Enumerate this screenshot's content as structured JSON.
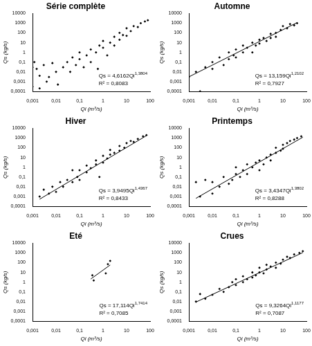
{
  "chart_data": [
    {
      "type": "scatter",
      "title": "Série complète",
      "x_label": "Qi (m³/s)",
      "y_label": "Qs (kg/s)",
      "log": true,
      "grid": false,
      "marker": "diamond",
      "color": "#000000",
      "line_style": "solid",
      "xlim": [
        0.001,
        100
      ],
      "ylim": [
        0.0001,
        10000
      ],
      "xticks": [
        {
          "value": 0.001,
          "label": "0,001"
        },
        {
          "value": 0.01,
          "label": "0,01"
        },
        {
          "value": 0.1,
          "label": "0,1"
        },
        1,
        10,
        100
      ],
      "yticks": [
        {
          "value": 0.0001,
          "label": "0,0001"
        },
        {
          "value": 0.001,
          "label": "0,001"
        },
        {
          "value": 0.01,
          "label": "0,01"
        },
        {
          "value": 0.1,
          "label": "0,1"
        },
        1,
        10,
        100,
        1000,
        10000
      ],
      "x": [
        0.001,
        0.001,
        0.0012,
        0.0015,
        0.002,
        0.003,
        0.004,
        0.005,
        0.007,
        0.01,
        0.012,
        0.02,
        0.03,
        0.04,
        0.05,
        0.07,
        0.1,
        0.1,
        0.15,
        0.2,
        0.3,
        0.3,
        0.5,
        0.7,
        1,
        1,
        1.5,
        2,
        3,
        3,
        5,
        5,
        7,
        10,
        10,
        15,
        20,
        30,
        40,
        60,
        80,
        0.6,
        0.002
      ],
      "values": [
        0.0003,
        0.03,
        0.1,
        0.02,
        0.0002,
        0.05,
        0.001,
        0.003,
        0.08,
        0.01,
        0.0005,
        0.03,
        0.1,
        0.01,
        0.3,
        0.05,
        0.2,
        1,
        0.03,
        0.5,
        2,
        0.1,
        1,
        5,
        3,
        15,
        0.5,
        10,
        40,
        5,
        20,
        100,
        60,
        50,
        300,
        150,
        500,
        400,
        1000,
        1500,
        2000,
        0.02,
        0.004
      ],
      "equation": {
        "text": "Qs = 4,6162Qi",
        "superscript": "1,3804"
      },
      "r2": "R² = 0,8083"
    },
    {
      "type": "scatter",
      "title": "Automne",
      "x_label": "Qi (m³/s)",
      "y_label": "Qs (kg/s)",
      "log": true,
      "grid": false,
      "marker": "diamond",
      "color": "#000000",
      "line_style": "solid",
      "xlim": [
        0.001,
        100
      ],
      "ylim": [
        0.0001,
        10000
      ],
      "xticks": [
        {
          "value": 0.001,
          "label": "0,001"
        },
        {
          "value": 0.01,
          "label": "0,01"
        },
        {
          "value": 0.1,
          "label": "0,1"
        },
        1,
        10,
        100
      ],
      "yticks": [
        {
          "value": 0.0001,
          "label": "0,0001"
        },
        {
          "value": 0.001,
          "label": "0,001"
        },
        {
          "value": 0.01,
          "label": "0,01"
        },
        {
          "value": 0.1,
          "label": "0,1"
        },
        1,
        10,
        100,
        1000,
        10000
      ],
      "x": [
        0.001,
        0.002,
        0.003,
        0.005,
        0.01,
        0.01,
        0.02,
        0.03,
        0.05,
        0.05,
        0.08,
        0.1,
        0.1,
        0.2,
        0.2,
        0.3,
        0.5,
        0.5,
        0.7,
        1,
        1,
        1.5,
        2,
        3,
        3,
        5,
        5,
        8,
        10,
        15,
        20,
        30,
        40
      ],
      "values": [
        0.003,
        0.01,
        0.0001,
        0.03,
        0.1,
        0.02,
        0.3,
        0.05,
        0.2,
        1,
        0.5,
        0.3,
        2,
        1,
        5,
        3,
        10,
        1,
        5,
        20,
        8,
        30,
        15,
        80,
        30,
        100,
        40,
        200,
        500,
        300,
        800,
        600,
        1000
      ],
      "trend_line": {
        "x": [
          0.001,
          40
        ],
        "values": [
          0.00308,
          1143
        ]
      },
      "equation": {
        "text": "Qs = 13,159Qi",
        "superscript": "1,2102"
      },
      "r2": "R² = 0,7927"
    },
    {
      "type": "scatter",
      "title": "Hiver",
      "x_label": "Qi (m³/s)",
      "y_label": "Qs (kg/s)",
      "log": true,
      "grid": false,
      "marker": "diamond",
      "color": "#000000",
      "line_style": "solid",
      "xlim": [
        0.001,
        100
      ],
      "ylim": [
        0.0001,
        10000
      ],
      "xticks": [
        {
          "value": 0.001,
          "label": "0,001"
        },
        {
          "value": 0.01,
          "label": "0,01"
        },
        {
          "value": 0.1,
          "label": "0,1"
        },
        1,
        10,
        100
      ],
      "yticks": [
        {
          "value": 0.0001,
          "label": "0,0001"
        },
        {
          "value": 0.001,
          "label": "0,001"
        },
        {
          "value": 0.01,
          "label": "0,01"
        },
        {
          "value": 0.1,
          "label": "0,1"
        },
        1,
        10,
        100,
        1000,
        10000
      ],
      "x": [
        0.002,
        0.003,
        0.005,
        0.007,
        0.01,
        0.015,
        0.02,
        0.03,
        0.05,
        0.05,
        0.08,
        0.1,
        0.1,
        0.2,
        0.2,
        0.3,
        0.5,
        0.5,
        0.7,
        1,
        1,
        1.5,
        2,
        2,
        3,
        5,
        5,
        8,
        10,
        15,
        20,
        30,
        50,
        70
      ],
      "values": [
        0.001,
        0.005,
        0.002,
        0.01,
        0.003,
        0.03,
        0.01,
        0.05,
        0.03,
        0.5,
        0.1,
        0.05,
        0.5,
        0.3,
        1.5,
        0.8,
        2,
        5,
        0.1,
        3,
        15,
        8,
        20,
        60,
        30,
        50,
        150,
        100,
        300,
        500,
        400,
        800,
        1500,
        2000
      ],
      "trend_line": {
        "x": [
          0.002,
          70
        ],
        "values": [
          0.000524,
          1768
        ]
      },
      "equation": {
        "text": "Qs = 3,9495Qi",
        "superscript": "1,4367"
      },
      "r2": "R² = 0,8433"
    },
    {
      "type": "scatter",
      "title": "Printemps",
      "x_label": "Qi (m³/s)",
      "y_label": "Qs (kg/s)",
      "log": true,
      "grid": false,
      "marker": "diamond",
      "color": "#000000",
      "line_style": "solid",
      "xlim": [
        0.001,
        100
      ],
      "ylim": [
        0.0001,
        10000
      ],
      "xticks": [
        {
          "value": 0.001,
          "label": "0,001"
        },
        {
          "value": 0.01,
          "label": "0,01"
        },
        {
          "value": 0.1,
          "label": "0,1"
        },
        1,
        10,
        100
      ],
      "yticks": [
        {
          "value": 0.0001,
          "label": "0,0001"
        },
        {
          "value": 0.001,
          "label": "0,001"
        },
        {
          "value": 0.01,
          "label": "0,01"
        },
        {
          "value": 0.1,
          "label": "0,1"
        },
        1,
        10,
        100,
        1000,
        10000
      ],
      "x": [
        0.002,
        0.003,
        0.005,
        0.01,
        0.01,
        0.02,
        0.03,
        0.05,
        0.07,
        0.1,
        0.1,
        0.15,
        0.2,
        0.3,
        0.3,
        0.5,
        0.7,
        1,
        1,
        1.5,
        2,
        3,
        3,
        5,
        5,
        8,
        10,
        10,
        15,
        20,
        30,
        40,
        60
      ],
      "values": [
        0.03,
        0.001,
        0.05,
        0.002,
        0.03,
        0.01,
        0.1,
        0.02,
        0.05,
        0.2,
        1,
        0.1,
        0.5,
        0.2,
        2,
        1,
        3,
        5,
        0.5,
        2,
        10,
        20,
        5,
        30,
        100,
        50,
        200,
        80,
        300,
        500,
        700,
        1000,
        1500
      ],
      "trend_line": {
        "x": [
          0.002,
          70
        ],
        "values": [
          0.000647,
          1209
        ]
      },
      "equation": {
        "text": "Qs = 3,4347Qi",
        "superscript": "1,3802"
      },
      "r2": "R² = 0,8288"
    },
    {
      "type": "scatter",
      "title": "Eté",
      "x_label": "Qi (m³/s)",
      "y_label": "Qs (kg/s)",
      "log": true,
      "grid": false,
      "marker": "diamond",
      "color": "#000000",
      "line_style": "solid",
      "xlim": [
        0.001,
        100
      ],
      "ylim": [
        0.0001,
        10000
      ],
      "xticks": [
        {
          "value": 0.001,
          "label": "0,001"
        },
        {
          "value": 0.01,
          "label": "0,01"
        },
        {
          "value": 0.1,
          "label": "0,1"
        },
        1,
        10,
        100
      ],
      "yticks": [
        {
          "value": 0.0001,
          "label": "0,0001"
        },
        {
          "value": 0.001,
          "label": "0,001"
        },
        {
          "value": 0.01,
          "label": "0,01"
        },
        {
          "value": 0.1,
          "label": "0,1"
        },
        1,
        10,
        100,
        1000,
        10000
      ],
      "x": [
        0.35,
        0.4,
        1.3,
        1.6,
        2
      ],
      "values": [
        5,
        1.5,
        8,
        70,
        150
      ],
      "trend_line": {
        "x": [
          0.3,
          2
        ],
        "values": [
          2.1,
          57.2
        ]
      },
      "equation": {
        "text": "Qs = 17,114Qi",
        "superscript": "1,7414"
      },
      "r2": "R² = 0,7085"
    },
    {
      "type": "scatter",
      "title": "Crues",
      "x_label": "Qi (m³/s)",
      "y_label": "Qs (kg/s)",
      "log": true,
      "grid": false,
      "marker": "diamond",
      "color": "#000000",
      "line_style": "solid",
      "xlim": [
        0.001,
        100
      ],
      "ylim": [
        0.0001,
        10000
      ],
      "xticks": [
        {
          "value": 0.001,
          "label": "0,001"
        },
        {
          "value": 0.01,
          "label": "0,01"
        },
        {
          "value": 0.1,
          "label": "0,1"
        },
        1,
        10,
        100
      ],
      "yticks": [
        {
          "value": 0.0001,
          "label": "0,0001"
        },
        {
          "value": 0.001,
          "label": "0,001"
        },
        {
          "value": 0.01,
          "label": "0,01"
        },
        {
          "value": 0.1,
          "label": "0,1"
        },
        1,
        10,
        100,
        1000,
        10000
      ],
      "x": [
        0.002,
        0.003,
        0.005,
        0.01,
        0.02,
        0.03,
        0.05,
        0.07,
        0.1,
        0.1,
        0.2,
        0.2,
        0.3,
        0.5,
        0.5,
        0.7,
        1,
        1,
        1.5,
        2,
        2,
        3,
        5,
        5,
        8,
        10,
        15,
        20,
        30,
        50,
        70
      ],
      "values": [
        0.01,
        0.06,
        0.02,
        0.05,
        0.2,
        0.1,
        0.3,
        1,
        0.5,
        2,
        1,
        4,
        2,
        3,
        10,
        5,
        10,
        30,
        8,
        20,
        60,
        40,
        100,
        30,
        80,
        200,
        400,
        300,
        700,
        1000,
        1500
      ],
      "trend_line": {
        "x": [
          0.002,
          70
        ],
        "values": [
          0.00897,
          1076
        ]
      },
      "equation": {
        "text": "Qs = 9,3264Qi",
        "superscript": "1,1177"
      },
      "r2": "R² = 0,7087"
    }
  ]
}
